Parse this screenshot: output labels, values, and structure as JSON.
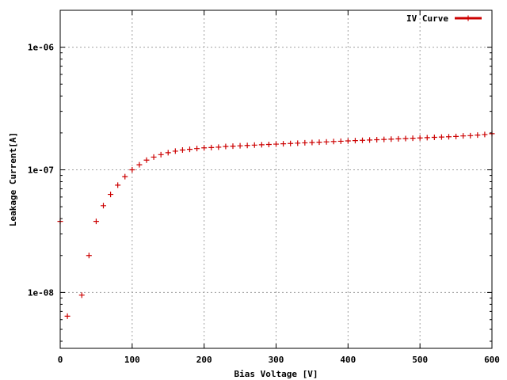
{
  "chart_data": {
    "type": "scatter",
    "title": "",
    "xlabel": "Bias Voltage [V]",
    "ylabel": "Leakage Current[A]",
    "xlim": [
      0,
      600
    ],
    "ylim": [
      3.5e-09,
      2e-06
    ],
    "yscale": "log",
    "grid": true,
    "legend_position": "top-right",
    "x_ticks": [
      {
        "value": 0,
        "label": "0"
      },
      {
        "value": 100,
        "label": "100"
      },
      {
        "value": 200,
        "label": "200"
      },
      {
        "value": 300,
        "label": "300"
      },
      {
        "value": 400,
        "label": "400"
      },
      {
        "value": 500,
        "label": "500"
      },
      {
        "value": 600,
        "label": "600"
      }
    ],
    "y_ticks": [
      {
        "value": 1e-08,
        "label": "1e-08"
      },
      {
        "value": 1e-07,
        "label": "1e-07"
      },
      {
        "value": 1e-06,
        "label": "1e-06"
      }
    ],
    "series": [
      {
        "name": "IV Curve",
        "color": "#cc0000",
        "marker": "plus",
        "x": [
          0,
          10,
          30,
          40,
          50,
          60,
          70,
          80,
          90,
          100,
          110,
          120,
          130,
          140,
          150,
          160,
          170,
          180,
          190,
          200,
          210,
          220,
          230,
          240,
          250,
          260,
          270,
          280,
          290,
          300,
          310,
          320,
          330,
          340,
          350,
          360,
          370,
          380,
          390,
          400,
          410,
          420,
          430,
          440,
          450,
          460,
          470,
          480,
          490,
          500,
          510,
          520,
          530,
          540,
          550,
          560,
          570,
          580,
          590,
          600
        ],
        "y": [
          3.8e-08,
          6.4e-09,
          9.5e-09,
          2e-08,
          3.8e-08,
          5.1e-08,
          6.3e-08,
          7.5e-08,
          8.8e-08,
          1e-07,
          1.1e-07,
          1.2e-07,
          1.27e-07,
          1.33e-07,
          1.38e-07,
          1.42e-07,
          1.45e-07,
          1.47e-07,
          1.49e-07,
          1.51e-07,
          1.52e-07,
          1.53e-07,
          1.55e-07,
          1.56e-07,
          1.57e-07,
          1.58e-07,
          1.59e-07,
          1.6e-07,
          1.61e-07,
          1.62e-07,
          1.63e-07,
          1.64e-07,
          1.65e-07,
          1.66e-07,
          1.67e-07,
          1.68e-07,
          1.69e-07,
          1.7e-07,
          1.71e-07,
          1.72e-07,
          1.73e-07,
          1.74e-07,
          1.75e-07,
          1.76e-07,
          1.77e-07,
          1.78e-07,
          1.79e-07,
          1.8e-07,
          1.81e-07,
          1.82e-07,
          1.83e-07,
          1.84e-07,
          1.85e-07,
          1.86e-07,
          1.87e-07,
          1.89e-07,
          1.9e-07,
          1.92e-07,
          1.94e-07,
          1.97e-07
        ]
      }
    ]
  }
}
